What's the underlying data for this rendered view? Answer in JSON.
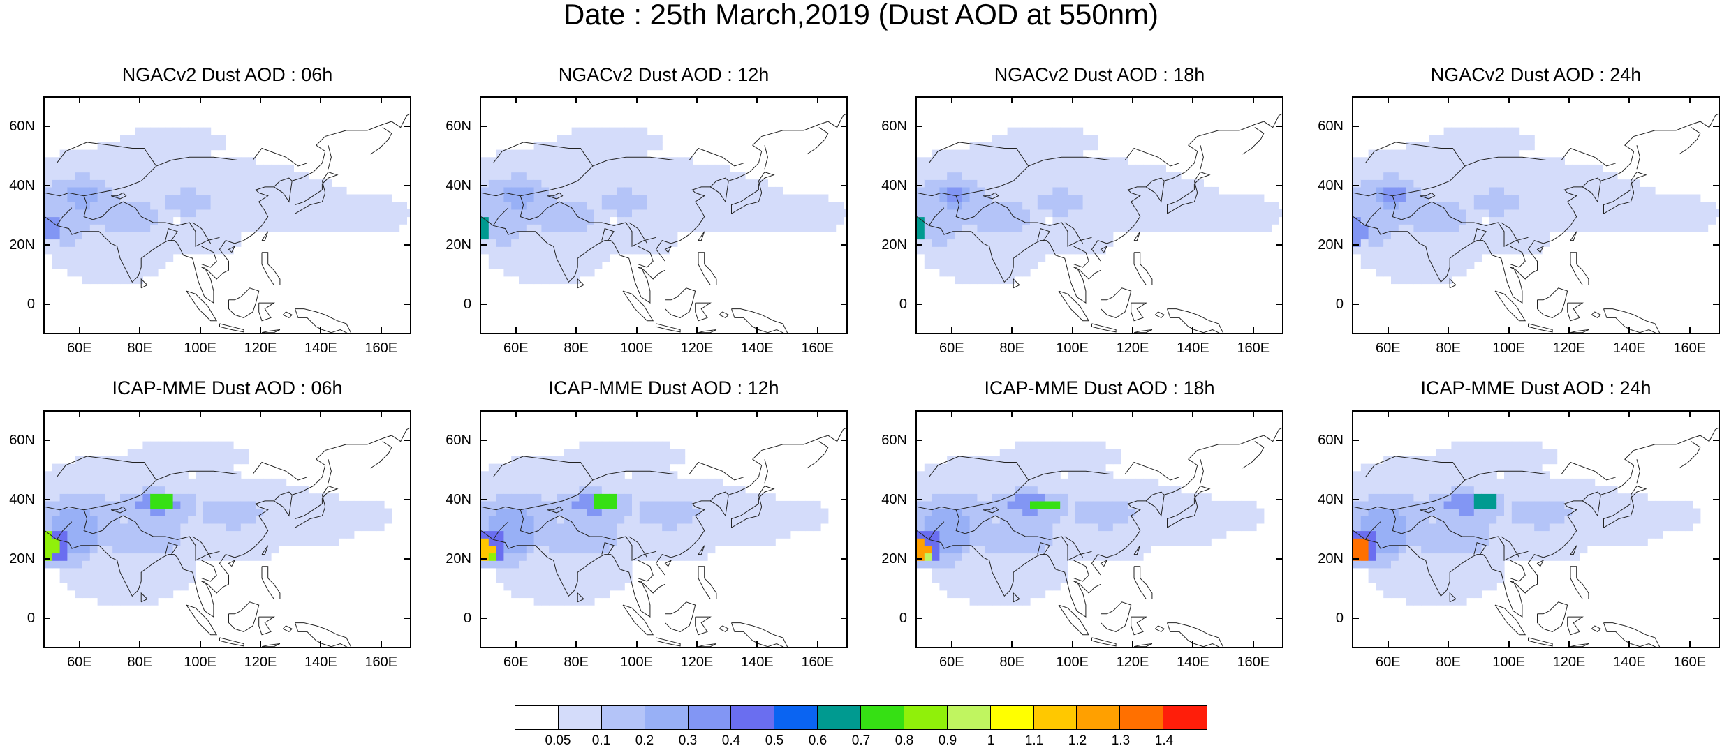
{
  "title": "Date : 25th March,2019 (Dust AOD at 550nm)",
  "x_ticks": [
    "60E",
    "80E",
    "100E",
    "120E",
    "140E",
    "160E"
  ],
  "y_ticks": [
    "60N",
    "40N",
    "20N",
    "0"
  ],
  "lon_range": [
    48,
    170
  ],
  "lat_range": [
    -10,
    70
  ],
  "panels": [
    {
      "title": "NGACv2 Dust AOD : 06h",
      "model": "NGACv2",
      "hour": "06h"
    },
    {
      "title": "NGACv2 Dust AOD : 12h",
      "model": "NGACv2",
      "hour": "12h"
    },
    {
      "title": "NGACv2 Dust AOD : 18h",
      "model": "NGACv2",
      "hour": "18h"
    },
    {
      "title": "NGACv2 Dust AOD : 24h",
      "model": "NGACv2",
      "hour": "24h"
    },
    {
      "title": "ICAP-MME Dust AOD : 06h",
      "model": "ICAP-MME",
      "hour": "06h"
    },
    {
      "title": "ICAP-MME Dust AOD : 12h",
      "model": "ICAP-MME",
      "hour": "12h"
    },
    {
      "title": "ICAP-MME Dust AOD : 18h",
      "model": "ICAP-MME",
      "hour": "18h"
    },
    {
      "title": "ICAP-MME Dust AOD : 24h",
      "model": "ICAP-MME",
      "hour": "24h"
    }
  ],
  "colorbar": {
    "labels": [
      "0.05",
      "0.1",
      "0.2",
      "0.3",
      "0.4",
      "0.5",
      "0.6",
      "0.7",
      "0.8",
      "0.9",
      "1",
      "1.1",
      "1.2",
      "1.3",
      "1.4"
    ],
    "colors": [
      "#ffffff",
      "#d4dcfa",
      "#b4c4f8",
      "#98b0f6",
      "#8296f4",
      "#6a6ef0",
      "#0a64f2",
      "#009a90",
      "#36e014",
      "#90f00a",
      "#c0f560",
      "#ffff00",
      "#ffc800",
      "#ffa000",
      "#ff7000",
      "#ff1e0a"
    ]
  }
}
